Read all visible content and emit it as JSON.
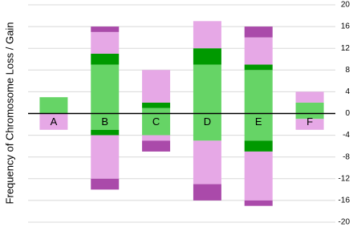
{
  "chart_data": {
    "type": "bar",
    "stacked": true,
    "y_label": "Frequency of Chromosome Loss / Gain",
    "categories": [
      "A",
      "B",
      "C",
      "D",
      "E",
      "F"
    ],
    "series": [
      {
        "color": "#66d466",
        "values": [
          3,
          9,
          1,
          9,
          8,
          2
        ]
      },
      {
        "color": "#009900",
        "values": [
          0,
          2,
          1,
          3,
          1,
          0
        ]
      },
      {
        "color": "#e6a8e6",
        "values": [
          0,
          4,
          6,
          5,
          5,
          2
        ]
      },
      {
        "color": "#aa4aaa",
        "values": [
          0,
          1,
          0,
          0,
          2,
          0
        ]
      },
      {
        "color": "#66d466",
        "values": [
          0,
          -3,
          -4,
          -5,
          -5,
          -1
        ]
      },
      {
        "color": "#009900",
        "values": [
          0,
          -1,
          0,
          0,
          -2,
          0
        ]
      },
      {
        "color": "#e6a8e6",
        "values": [
          -3,
          -8,
          -1,
          -8,
          -9,
          -2
        ]
      },
      {
        "color": "#aa4aaa",
        "values": [
          0,
          -2,
          -2,
          -3,
          -1,
          0
        ]
      }
    ],
    "ylim": [
      -20,
      20
    ],
    "yticks": [
      20,
      16,
      12,
      8,
      4,
      0,
      -4,
      -8,
      -12,
      -16,
      -20
    ],
    "grid": true
  }
}
